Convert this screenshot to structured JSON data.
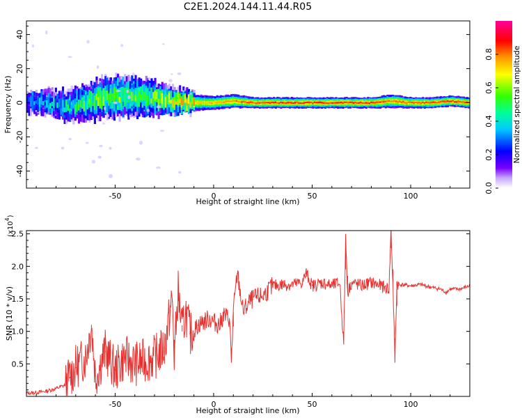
{
  "title": "C2E1.2024.144.11.44.R05",
  "chart_data": [
    {
      "type": "heatmap",
      "xlabel": "Height of straight line (km)",
      "ylabel": "Frequency (Hz)",
      "xlim": [
        -95,
        130
      ],
      "ylim": [
        -50,
        48
      ],
      "x_ticks": [
        -50,
        0,
        50,
        100
      ],
      "x_tick_labels": [
        "-50",
        "0",
        "50",
        "100"
      ],
      "y_ticks": [
        -40,
        -20,
        0,
        20,
        40
      ],
      "y_tick_labels": [
        "-40",
        "-20",
        "0",
        "20",
        "40"
      ],
      "colorbar": {
        "label": "Normalized spectral amplitude",
        "range": [
          0,
          1
        ],
        "ticks": [
          0.0,
          0.2,
          0.4,
          0.6,
          0.8
        ],
        "tick_labels": [
          "0.0",
          "0.2",
          "0.4",
          "0.6",
          "0.8"
        ],
        "colormap": [
          "#7a00ff",
          "#0000ff",
          "#00c8ff",
          "#00ff66",
          "#66ff00",
          "#ffff00",
          "#ff9900",
          "#ff0000",
          "#ff0099"
        ]
      },
      "band": {
        "x": [
          -95,
          -85,
          -75,
          -65,
          -55,
          -45,
          -35,
          -25,
          -18,
          -10,
          0,
          10,
          20,
          40,
          60,
          80,
          90,
          100,
          110,
          120,
          130
        ],
        "center_hz": [
          1,
          0,
          -2,
          0,
          3,
          4,
          3,
          2,
          1,
          0,
          0,
          1,
          0,
          0,
          0,
          0,
          1,
          0,
          0,
          1,
          0
        ],
        "halfwidth_hz": [
          3,
          4,
          5,
          6,
          7,
          7,
          6,
          5,
          4,
          3,
          2.5,
          2.5,
          2,
          2,
          2,
          2,
          2.5,
          2,
          2,
          2,
          2
        ],
        "peak_amplitude": [
          0.3,
          0.35,
          0.4,
          0.5,
          0.55,
          0.55,
          0.55,
          0.6,
          0.7,
          0.75,
          0.8,
          0.85,
          0.9,
          0.92,
          0.92,
          0.92,
          0.85,
          0.9,
          0.9,
          0.92,
          0.9
        ]
      }
    },
    {
      "type": "line",
      "xlabel": "Height of straight line (km)",
      "ylabel": "SNR (10 * v/v)",
      "scale_label": "(x10",
      "scale_exponent": "4",
      "xlim": [
        -95,
        130
      ],
      "ylim": [
        0,
        2.55
      ],
      "x_ticks": [
        -50,
        0,
        50,
        100
      ],
      "x_tick_labels": [
        "-50",
        "0",
        "50",
        "100"
      ],
      "y_ticks": [
        0.5,
        1.0,
        1.5,
        2.0,
        2.5
      ],
      "y_tick_labels": [
        "0.5",
        "1.0",
        "1.5",
        "2.0",
        "2.5"
      ],
      "color": "#e8312f",
      "series": [
        {
          "x": [
            -95,
            -90,
            -85,
            -80,
            -75,
            -73,
            -70,
            -65,
            -62,
            -60,
            -55,
            -50,
            -45,
            -40,
            -35,
            -30,
            -25,
            -21,
            -20,
            -18,
            -16,
            -14,
            -12,
            -10,
            -8,
            -5,
            -2,
            0,
            3,
            5,
            8,
            9,
            10,
            12,
            15,
            18,
            20,
            25,
            30,
            35,
            40,
            45,
            47,
            50,
            55,
            60,
            64,
            66,
            67,
            68,
            70,
            75,
            80,
            85,
            89,
            90,
            91,
            92,
            93,
            94,
            95,
            100,
            105,
            110,
            115,
            118,
            120,
            125,
            130
          ],
          "y": [
            0.05,
            0.06,
            0.08,
            0.12,
            0.18,
            0.3,
            0.45,
            0.6,
            1.1,
            0.3,
            0.7,
            0.4,
            0.6,
            0.5,
            0.55,
            0.6,
            0.75,
            1.5,
            0.6,
            1.62,
            1.0,
            1.3,
            0.95,
            1.0,
            1.1,
            1.15,
            1.2,
            1.15,
            1.1,
            1.25,
            1.2,
            0.55,
            1.3,
            1.9,
            1.3,
            1.45,
            1.5,
            1.55,
            1.7,
            1.72,
            1.72,
            1.75,
            1.9,
            1.7,
            1.75,
            1.7,
            1.75,
            0.8,
            2.45,
            1.6,
            1.75,
            1.7,
            1.75,
            1.7,
            1.65,
            2.55,
            1.7,
            0.55,
            1.75,
            1.7,
            1.72,
            1.7,
            1.72,
            1.68,
            1.65,
            1.6,
            1.65,
            1.65,
            1.7
          ]
        }
      ]
    }
  ]
}
